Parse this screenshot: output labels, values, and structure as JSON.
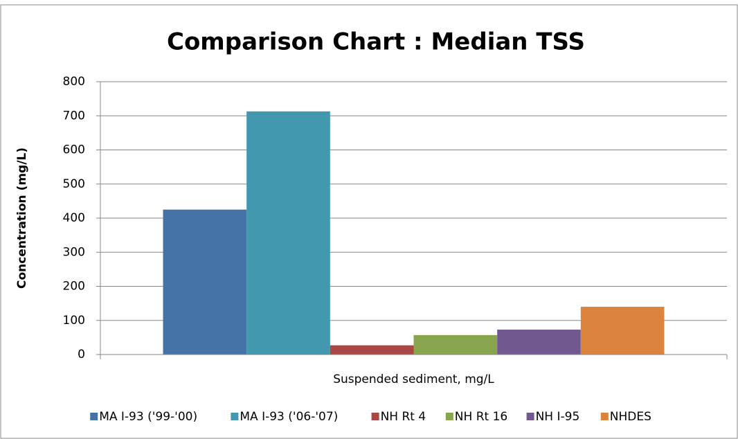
{
  "chart_data": {
    "type": "bar",
    "title": "Comparison Chart : Median TSS",
    "y_label": "Concentration  (mg/L)",
    "categories": [
      "Suspended sediment, mg/L"
    ],
    "series": [
      {
        "name": "MA I-93 ('99-'00)",
        "color": "#4573a7",
        "values": [
          425
        ]
      },
      {
        "name": "MA I-93 ('06-'07)",
        "color": "#4198af",
        "values": [
          713
        ]
      },
      {
        "name": "NH Rt 4",
        "color": "#aa4643",
        "values": [
          27
        ]
      },
      {
        "name": "NH Rt 16",
        "color": "#89a54e",
        "values": [
          57
        ]
      },
      {
        "name": "NH I-95",
        "color": "#71588f",
        "values": [
          73
        ]
      },
      {
        "name": "NHDES",
        "color": "#db843d",
        "values": [
          140
        ]
      }
    ],
    "ylim": [
      0,
      800
    ],
    "yticks": [
      0,
      100,
      200,
      300,
      400,
      500,
      600,
      700,
      800
    ],
    "grid": true,
    "legend": "bottom"
  }
}
